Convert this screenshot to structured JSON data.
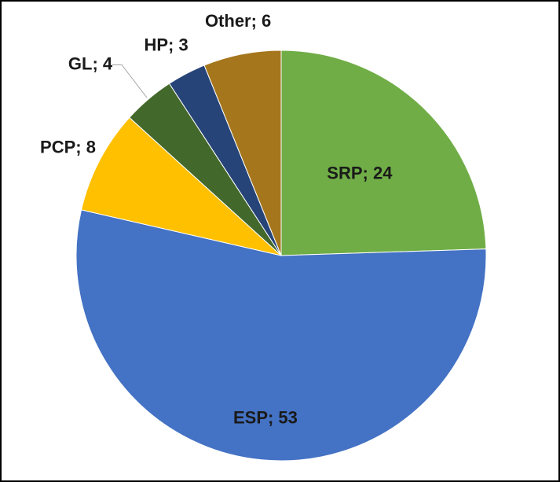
{
  "chart_data": {
    "type": "pie",
    "values": [
      24,
      53,
      8,
      4,
      3,
      6
    ],
    "value_labels": [
      "SRP; 24",
      "ESP; 53",
      "PCP; 8",
      "GL; 4",
      "HP; 3",
      "Other; 6"
    ],
    "colors": [
      "#70ad47",
      "#4472c4",
      "#ffc000",
      "#43682b",
      "#264478",
      "#a5761c"
    ]
  }
}
